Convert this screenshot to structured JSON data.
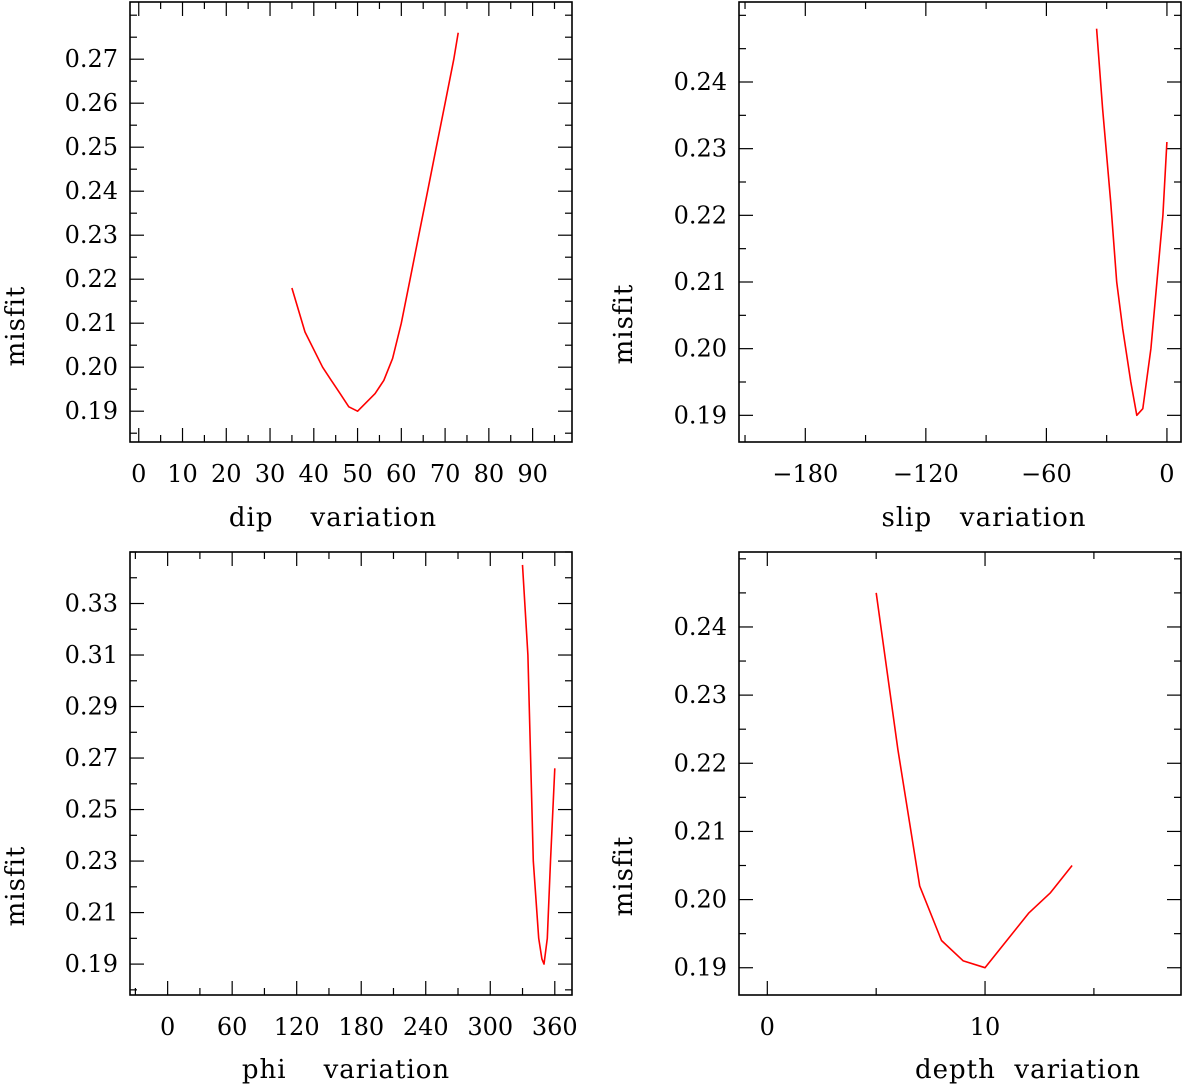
{
  "chart_data": [
    {
      "type": "line",
      "xlabel": "dip    variation",
      "ylabel": "misfit",
      "xlim": [
        -2,
        99
      ],
      "ylim": [
        0.183,
        0.283
      ],
      "xticks": [
        0,
        10,
        20,
        30,
        40,
        50,
        60,
        70,
        80,
        90
      ],
      "yticks": [
        0.19,
        0.2,
        0.21,
        0.22,
        0.23,
        0.24,
        0.25,
        0.26,
        0.27
      ],
      "ytick_labels": [
        "0.19",
        "0.20",
        "0.21",
        "0.22",
        "0.23",
        "0.24",
        "0.25",
        "0.26",
        "0.27"
      ],
      "series": [
        {
          "color": "#ff0000",
          "x": [
            35,
            38,
            42,
            44,
            46,
            48,
            50,
            52,
            54,
            56,
            58,
            60,
            62,
            64,
            66,
            68,
            70,
            72,
            73
          ],
          "y": [
            0.218,
            0.208,
            0.2,
            0.197,
            0.194,
            0.191,
            0.19,
            0.192,
            0.194,
            0.197,
            0.202,
            0.21,
            0.22,
            0.23,
            0.24,
            0.25,
            0.26,
            0.27,
            0.276
          ]
        }
      ]
    },
    {
      "type": "line",
      "xlabel": "slip   variation",
      "ylabel": "misfit",
      "xlim": [
        -213,
        7
      ],
      "ylim": [
        0.186,
        0.252
      ],
      "xticks": [
        -180,
        -120,
        -60,
        0
      ],
      "xtick_labels": [
        "−180",
        "−120",
        "−60",
        "0"
      ],
      "yticks": [
        0.19,
        0.2,
        0.21,
        0.22,
        0.23,
        0.24
      ],
      "ytick_labels": [
        "0.19",
        "0.20",
        "0.21",
        "0.22",
        "0.23",
        "0.24"
      ],
      "series": [
        {
          "color": "#ff0000",
          "x": [
            -35,
            -32,
            -28,
            -25,
            -22,
            -18,
            -15,
            -12,
            -8,
            -5,
            -2,
            0
          ],
          "y": [
            0.248,
            0.236,
            0.222,
            0.21,
            0.203,
            0.195,
            0.19,
            0.191,
            0.2,
            0.21,
            0.22,
            0.231
          ]
        }
      ]
    },
    {
      "type": "line",
      "xlabel": "phi    variation",
      "ylabel": "misfit",
      "xlim": [
        -35,
        376
      ],
      "ylim": [
        0.178,
        0.35
      ],
      "xticks": [
        0,
        60,
        120,
        180,
        240,
        300,
        360
      ],
      "yticks": [
        0.19,
        0.21,
        0.23,
        0.25,
        0.27,
        0.29,
        0.31,
        0.33
      ],
      "ytick_labels": [
        "0.19",
        "0.21",
        "0.23",
        "0.25",
        "0.27",
        "0.29",
        "0.31",
        "0.33"
      ],
      "series": [
        {
          "color": "#ff0000",
          "x": [
            330,
            335,
            340,
            345,
            348,
            350,
            353,
            356,
            360
          ],
          "y": [
            0.345,
            0.31,
            0.23,
            0.2,
            0.192,
            0.19,
            0.2,
            0.23,
            0.266
          ]
        }
      ]
    },
    {
      "type": "line",
      "xlabel": "depth  variation",
      "ylabel": "misfit",
      "xlim": [
        -1.3,
        19.0
      ],
      "ylim": [
        0.186,
        0.251
      ],
      "xticks": [
        0,
        10
      ],
      "yticks": [
        0.19,
        0.2,
        0.21,
        0.22,
        0.23,
        0.24
      ],
      "ytick_labels": [
        "0.19",
        "0.20",
        "0.21",
        "0.22",
        "0.23",
        "0.24"
      ],
      "series": [
        {
          "color": "#ff0000",
          "x": [
            5,
            6,
            7,
            8,
            9,
            10,
            11,
            12,
            13,
            14
          ],
          "y": [
            0.245,
            0.222,
            0.202,
            0.194,
            0.191,
            0.19,
            0.194,
            0.198,
            0.201,
            0.205
          ]
        }
      ]
    }
  ]
}
